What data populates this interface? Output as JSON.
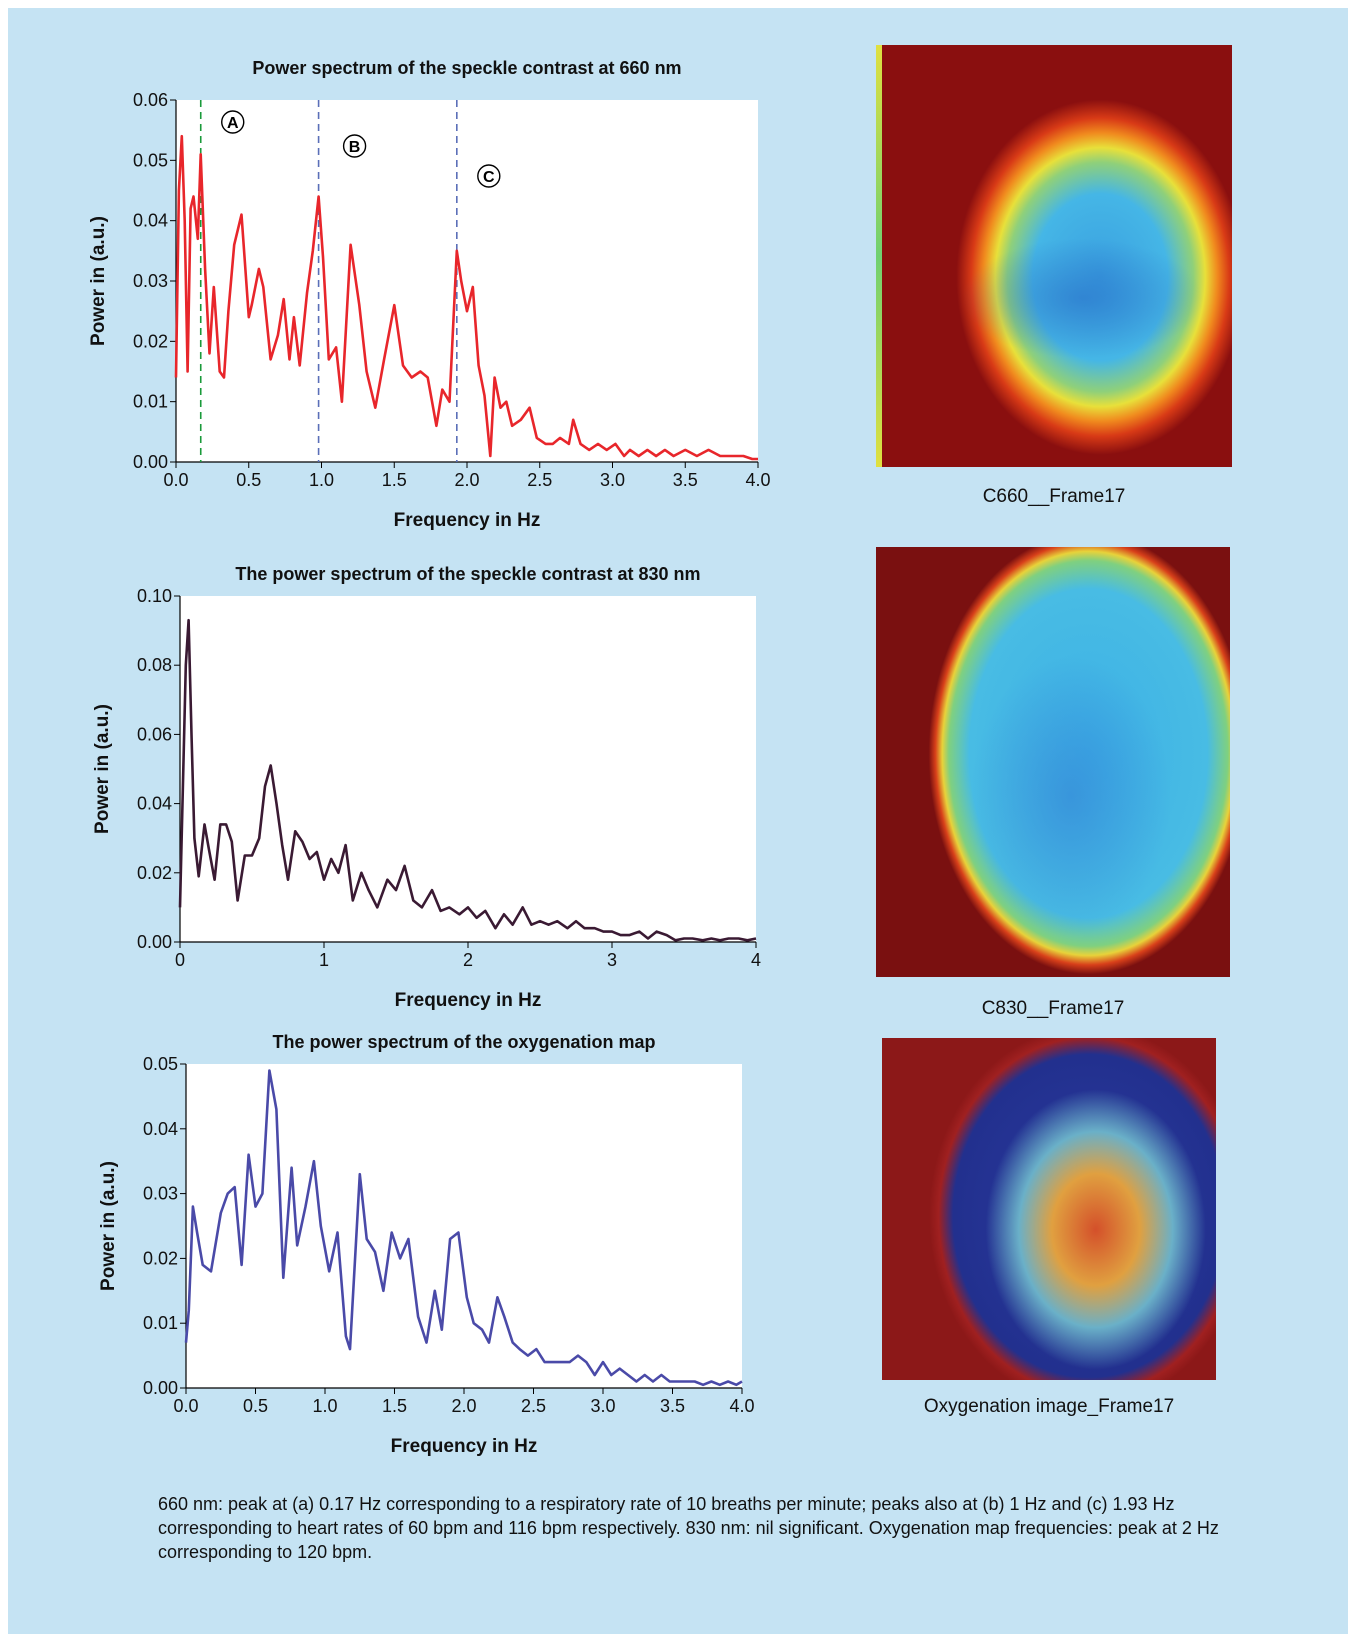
{
  "chart_data": [
    {
      "type": "line",
      "title": "Power spectrum of the speckle contrast at 660 nm",
      "xlabel": "Frequency in Hz",
      "ylabel": "Power in (a.u.)",
      "xlim": [
        0,
        4
      ],
      "ylim": [
        0,
        0.06
      ],
      "xticks": [
        "0.0",
        "0.5",
        "1.0",
        "1.5",
        "2.0",
        "2.5",
        "3.0",
        "3.5",
        "4.0"
      ],
      "yticks": [
        "0.00",
        "0.01",
        "0.02",
        "0.03",
        "0.04",
        "0.05",
        "0.06"
      ],
      "line_color": "#e8262b",
      "markers": [
        {
          "x": 0.17,
          "label": "A",
          "color": "#1a9a3a"
        },
        {
          "x": 0.98,
          "label": "B",
          "color": "#5a6fb8"
        },
        {
          "x": 1.93,
          "label": "C",
          "color": "#5a6fb8"
        }
      ],
      "series": [
        {
          "x": [
            0,
            0.02,
            0.04,
            0.06,
            0.08,
            0.1,
            0.12,
            0.15,
            0.17,
            0.2,
            0.23,
            0.26,
            0.3,
            0.33,
            0.36,
            0.4,
            0.45,
            0.5,
            0.52,
            0.57,
            0.6,
            0.65,
            0.7,
            0.74,
            0.78,
            0.81,
            0.85,
            0.9,
            0.94,
            0.98,
            1.01,
            1.05,
            1.1,
            1.14,
            1.2,
            1.26,
            1.31,
            1.37,
            1.43,
            1.5,
            1.56,
            1.62,
            1.68,
            1.73,
            1.79,
            1.83,
            1.88,
            1.93,
            1.96,
            2.0,
            2.04,
            2.08,
            2.12,
            2.16,
            2.19,
            2.23,
            2.27,
            2.31,
            2.37,
            2.43,
            2.48,
            2.54,
            2.59,
            2.64,
            2.7,
            2.73,
            2.78,
            2.84,
            2.9,
            2.96,
            3.02,
            3.08,
            3.12,
            3.18,
            3.24,
            3.3,
            3.36,
            3.42,
            3.5,
            3.58,
            3.66,
            3.74,
            3.82,
            3.9,
            3.96,
            4.0
          ],
          "y": [
            0.014,
            0.045,
            0.054,
            0.04,
            0.015,
            0.042,
            0.044,
            0.037,
            0.051,
            0.032,
            0.018,
            0.029,
            0.015,
            0.014,
            0.025,
            0.036,
            0.041,
            0.024,
            0.026,
            0.032,
            0.029,
            0.017,
            0.021,
            0.027,
            0.017,
            0.024,
            0.016,
            0.028,
            0.035,
            0.044,
            0.034,
            0.017,
            0.019,
            0.01,
            0.036,
            0.026,
            0.015,
            0.009,
            0.017,
            0.026,
            0.016,
            0.014,
            0.015,
            0.014,
            0.006,
            0.012,
            0.01,
            0.035,
            0.03,
            0.025,
            0.029,
            0.016,
            0.011,
            0.001,
            0.014,
            0.009,
            0.01,
            0.006,
            0.007,
            0.009,
            0.004,
            0.003,
            0.003,
            0.004,
            0.003,
            0.007,
            0.003,
            0.002,
            0.003,
            0.002,
            0.003,
            0.001,
            0.002,
            0.001,
            0.002,
            0.001,
            0.002,
            0.001,
            0.002,
            0.001,
            0.002,
            0.001,
            0.001,
            0.001,
            0.0005,
            0.0005
          ]
        }
      ]
    },
    {
      "type": "line",
      "title": "The power spectrum of the speckle contrast at 830 nm",
      "xlabel": "Frequency in Hz",
      "ylabel": "Power in (a.u.)",
      "xlim": [
        0,
        4
      ],
      "ylim": [
        0,
        0.1
      ],
      "xticks": [
        "0",
        "1",
        "2",
        "3",
        "4"
      ],
      "yticks": [
        "0.00",
        "0.02",
        "0.04",
        "0.06",
        "0.08",
        "0.10"
      ],
      "line_color": "#3a1a33",
      "series": [
        {
          "x": [
            0,
            0.02,
            0.04,
            0.06,
            0.08,
            0.1,
            0.13,
            0.17,
            0.2,
            0.24,
            0.28,
            0.32,
            0.36,
            0.4,
            0.45,
            0.5,
            0.55,
            0.59,
            0.63,
            0.67,
            0.71,
            0.75,
            0.8,
            0.85,
            0.9,
            0.95,
            1.0,
            1.05,
            1.1,
            1.15,
            1.2,
            1.26,
            1.31,
            1.37,
            1.44,
            1.5,
            1.56,
            1.62,
            1.68,
            1.75,
            1.81,
            1.87,
            1.94,
            2.0,
            2.06,
            2.12,
            2.19,
            2.25,
            2.31,
            2.38,
            2.44,
            2.5,
            2.56,
            2.62,
            2.69,
            2.75,
            2.81,
            2.88,
            2.94,
            3.0,
            3.06,
            3.12,
            3.19,
            3.25,
            3.31,
            3.38,
            3.44,
            3.5,
            3.56,
            3.63,
            3.69,
            3.75,
            3.81,
            3.88,
            3.94,
            4.0
          ],
          "y": [
            0.01,
            0.045,
            0.08,
            0.093,
            0.06,
            0.03,
            0.019,
            0.034,
            0.027,
            0.018,
            0.034,
            0.034,
            0.029,
            0.012,
            0.025,
            0.025,
            0.03,
            0.045,
            0.051,
            0.04,
            0.028,
            0.018,
            0.032,
            0.029,
            0.024,
            0.026,
            0.018,
            0.024,
            0.02,
            0.028,
            0.012,
            0.02,
            0.015,
            0.01,
            0.018,
            0.015,
            0.022,
            0.012,
            0.01,
            0.015,
            0.009,
            0.01,
            0.008,
            0.01,
            0.007,
            0.009,
            0.004,
            0.008,
            0.005,
            0.01,
            0.005,
            0.006,
            0.005,
            0.006,
            0.004,
            0.006,
            0.004,
            0.004,
            0.003,
            0.003,
            0.002,
            0.002,
            0.003,
            0.001,
            0.003,
            0.002,
            0.0005,
            0.001,
            0.001,
            0.0005,
            0.001,
            0.0005,
            0.001,
            0.001,
            0.0005,
            0.001
          ]
        }
      ]
    },
    {
      "type": "line",
      "title": "The power spectrum of the oxygenation map",
      "xlabel": "Frequency in Hz",
      "ylabel": "Power in (a.u.)",
      "xlim": [
        0,
        4
      ],
      "ylim": [
        0,
        0.05
      ],
      "xticks": [
        "0.0",
        "0.5",
        "1.0",
        "1.5",
        "2.0",
        "2.5",
        "3.0",
        "3.5",
        "4.0"
      ],
      "yticks": [
        "0.00",
        "0.01",
        "0.02",
        "0.03",
        "0.04",
        "0.05"
      ],
      "line_color": "#4a4aa8",
      "series": [
        {
          "x": [
            0,
            0.02,
            0.05,
            0.08,
            0.12,
            0.18,
            0.25,
            0.3,
            0.35,
            0.4,
            0.45,
            0.5,
            0.55,
            0.6,
            0.65,
            0.7,
            0.76,
            0.8,
            0.86,
            0.92,
            0.97,
            1.03,
            1.09,
            1.15,
            1.18,
            1.25,
            1.3,
            1.36,
            1.42,
            1.48,
            1.54,
            1.6,
            1.67,
            1.73,
            1.79,
            1.84,
            1.9,
            1.96,
            2.02,
            2.07,
            2.13,
            2.18,
            2.24,
            2.29,
            2.35,
            2.4,
            2.46,
            2.52,
            2.58,
            2.64,
            2.7,
            2.76,
            2.82,
            2.88,
            2.94,
            3.0,
            3.06,
            3.12,
            3.18,
            3.24,
            3.3,
            3.36,
            3.42,
            3.48,
            3.54,
            3.6,
            3.66,
            3.72,
            3.78,
            3.84,
            3.9,
            3.96,
            4.0
          ],
          "y": [
            0.007,
            0.012,
            0.028,
            0.024,
            0.019,
            0.018,
            0.027,
            0.03,
            0.031,
            0.019,
            0.036,
            0.028,
            0.03,
            0.049,
            0.043,
            0.017,
            0.034,
            0.022,
            0.028,
            0.035,
            0.025,
            0.018,
            0.024,
            0.008,
            0.006,
            0.033,
            0.023,
            0.021,
            0.015,
            0.024,
            0.02,
            0.023,
            0.011,
            0.007,
            0.015,
            0.009,
            0.023,
            0.024,
            0.014,
            0.01,
            0.009,
            0.007,
            0.014,
            0.011,
            0.007,
            0.006,
            0.005,
            0.006,
            0.004,
            0.004,
            0.004,
            0.004,
            0.005,
            0.004,
            0.002,
            0.004,
            0.002,
            0.003,
            0.002,
            0.001,
            0.002,
            0.001,
            0.002,
            0.001,
            0.001,
            0.001,
            0.001,
            0.0005,
            0.001,
            0.0005,
            0.001,
            0.0005,
            0.001
          ]
        }
      ]
    }
  ],
  "images": {
    "c660_label": "C660__Frame17",
    "c830_label": "C830__Frame17",
    "oxy_label": "Oxygenation image_Frame17"
  },
  "caption": "660 nm: peak at (a) 0.17 Hz corresponding to a respiratory rate of 10 breaths per minute; peaks also at (b) 1 Hz and (c) 1.93 Hz corresponding to heart rates of 60 bpm and 116 bpm respectively. 830 nm: nil significant. Oxygenation map frequencies: peak at 2 Hz corresponding to 120 bpm."
}
